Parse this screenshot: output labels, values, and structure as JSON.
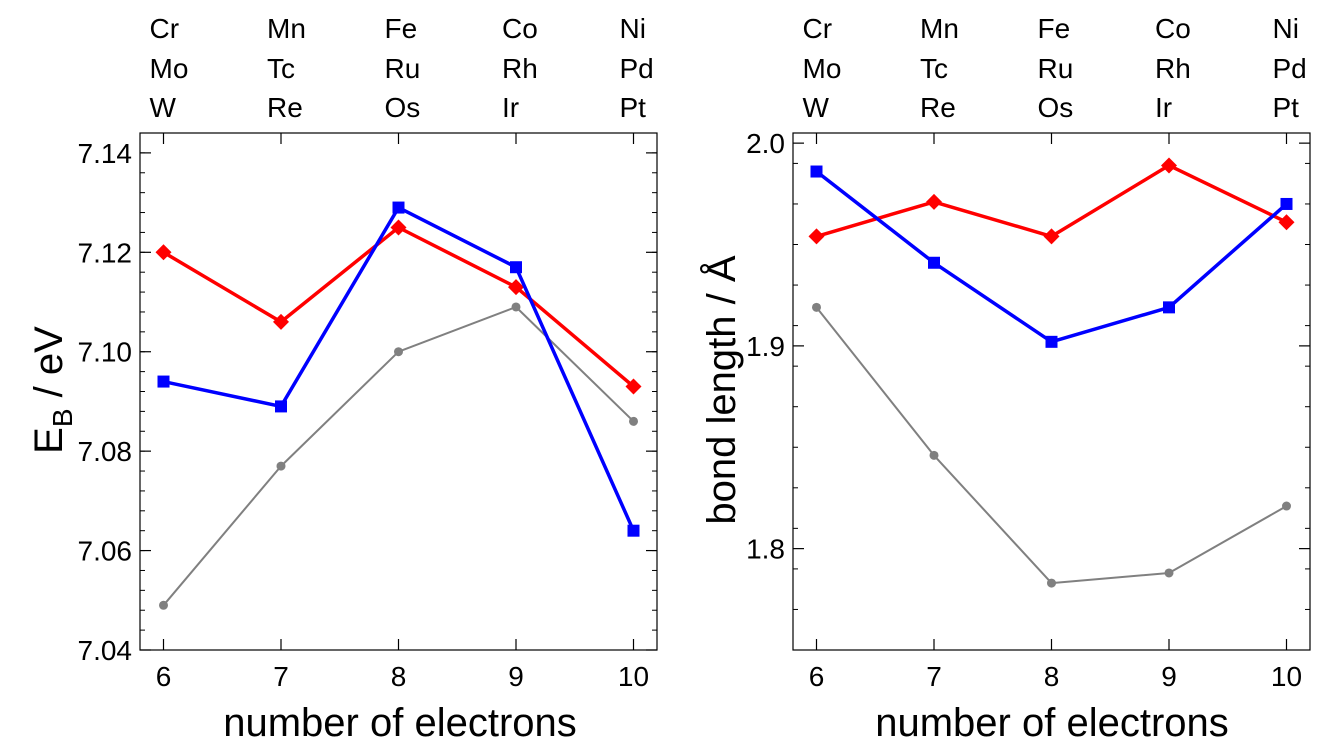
{
  "chart_data": [
    {
      "type": "line",
      "title": "",
      "xlabel": "number of electrons",
      "ylabel": "E_B / eV",
      "ylabel_main": "E",
      "ylabel_sub": "B",
      "ylabel_rest": " / eV",
      "xlim": [
        5.8,
        10.2
      ],
      "ylim": [
        7.04,
        7.144
      ],
      "x_ticks": [
        6,
        7,
        8,
        9,
        10
      ],
      "x_tick_labels": [
        "6",
        "7",
        "8",
        "9",
        "10"
      ],
      "y_ticks": [
        7.04,
        7.06,
        7.08,
        7.1,
        7.12,
        7.14
      ],
      "y_tick_labels": [
        "7.04",
        "7.06",
        "7.08",
        "7.10",
        "7.12",
        "7.14"
      ],
      "top_labels": [
        [
          "Cr",
          "Mo",
          "W"
        ],
        [
          "Mn",
          "Tc",
          "Re"
        ],
        [
          "Fe",
          "Ru",
          "Os"
        ],
        [
          "Co",
          "Rh",
          "Ir"
        ],
        [
          "Ni",
          "Pd",
          "Pt"
        ]
      ],
      "x": [
        6,
        7,
        8,
        9,
        10
      ],
      "series": [
        {
          "name": "gray",
          "color": "#808080",
          "marker": "circle",
          "values": [
            7.049,
            7.077,
            7.1,
            7.109,
            7.086
          ]
        },
        {
          "name": "red",
          "color": "#ff0000",
          "marker": "diamond",
          "values": [
            7.12,
            7.106,
            7.125,
            7.113,
            7.093
          ]
        },
        {
          "name": "blue",
          "color": "#0000ff",
          "marker": "square",
          "values": [
            7.094,
            7.089,
            7.129,
            7.117,
            7.064
          ]
        }
      ]
    },
    {
      "type": "line",
      "title": "",
      "xlabel": "number of electrons",
      "ylabel": "bond length / Å",
      "xlim": [
        5.8,
        10.2
      ],
      "ylim": [
        1.75,
        2.005
      ],
      "x_ticks": [
        6,
        7,
        8,
        9,
        10
      ],
      "x_tick_labels": [
        "6",
        "7",
        "8",
        "9",
        "10"
      ],
      "y_ticks": [
        1.8,
        1.9,
        2.0
      ],
      "y_tick_labels": [
        "1.8",
        "1.9",
        "2.0"
      ],
      "top_labels": [
        [
          "Cr",
          "Mo",
          "W"
        ],
        [
          "Mn",
          "Tc",
          "Re"
        ],
        [
          "Fe",
          "Ru",
          "Os"
        ],
        [
          "Co",
          "Rh",
          "Ir"
        ],
        [
          "Ni",
          "Pd",
          "Pt"
        ]
      ],
      "x": [
        6,
        7,
        8,
        9,
        10
      ],
      "series": [
        {
          "name": "gray",
          "color": "#808080",
          "marker": "circle",
          "values": [
            1.919,
            1.846,
            1.783,
            1.788,
            1.821
          ]
        },
        {
          "name": "red",
          "color": "#ff0000",
          "marker": "diamond",
          "values": [
            1.954,
            1.971,
            1.954,
            1.989,
            1.961
          ]
        },
        {
          "name": "blue",
          "color": "#0000ff",
          "marker": "square",
          "values": [
            1.986,
            1.941,
            1.902,
            1.919,
            1.97
          ]
        }
      ]
    }
  ]
}
